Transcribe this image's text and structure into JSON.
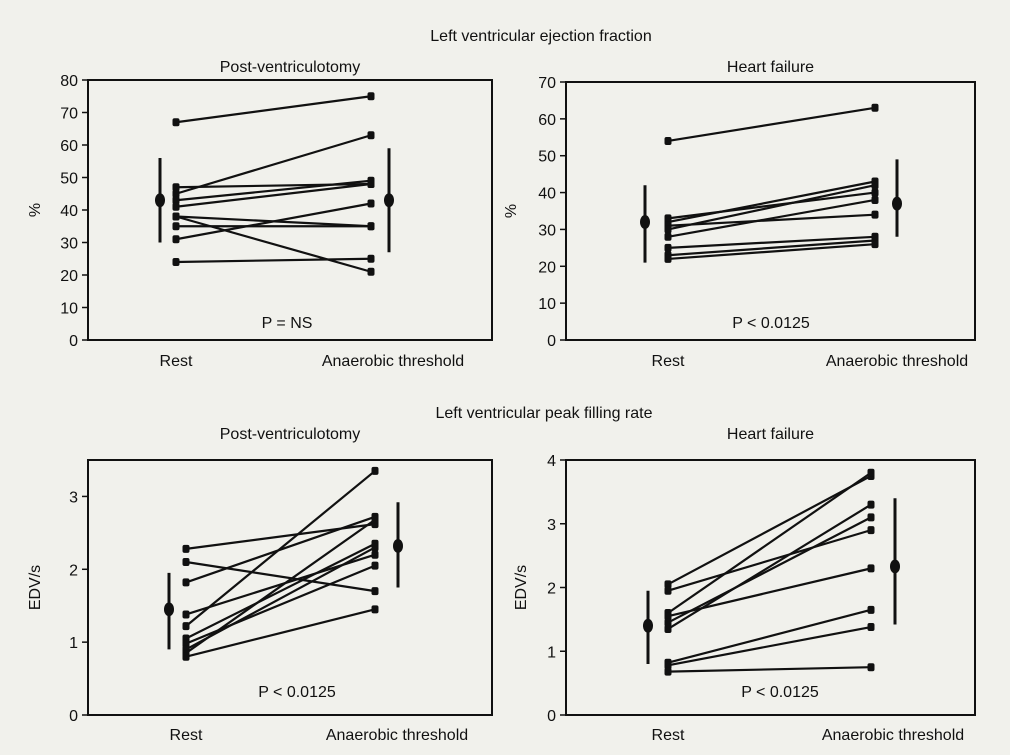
{
  "figure": {
    "background": "#f1f1ec",
    "ink": "#111111",
    "sections": [
      {
        "title": "Left ventricular ejection fraction"
      },
      {
        "title": "Left ventricular peak filling rate"
      }
    ]
  },
  "chart_data": [
    {
      "type": "line",
      "section": 0,
      "title": "Post-ventriculotomy",
      "ylabel": "%",
      "categories": [
        "Rest",
        "Anaerobic threshold"
      ],
      "ylim": [
        0,
        80
      ],
      "yticks": [
        0,
        10,
        20,
        30,
        40,
        50,
        60,
        70,
        80
      ],
      "annotation": "P = NS",
      "pairs": [
        [
          67,
          75
        ],
        [
          47,
          48
        ],
        [
          45,
          63
        ],
        [
          43,
          49
        ],
        [
          41,
          48
        ],
        [
          38,
          21
        ],
        [
          38,
          35
        ],
        [
          35,
          35
        ],
        [
          31,
          42
        ],
        [
          24,
          25
        ]
      ],
      "summary": [
        {
          "mean": 43,
          "low": 30,
          "high": 56
        },
        {
          "mean": 43,
          "low": 27,
          "high": 59
        }
      ]
    },
    {
      "type": "line",
      "section": 0,
      "title": "Heart failure",
      "ylabel": "%",
      "categories": [
        "Rest",
        "Anaerobic threshold"
      ],
      "ylim": [
        0,
        70
      ],
      "yticks": [
        0,
        10,
        20,
        30,
        40,
        50,
        60,
        70
      ],
      "annotation": "P < 0.0125",
      "pairs": [
        [
          54,
          63
        ],
        [
          33,
          40
        ],
        [
          32,
          43
        ],
        [
          31,
          34
        ],
        [
          30,
          42
        ],
        [
          28,
          38
        ],
        [
          25,
          28
        ],
        [
          23,
          27
        ],
        [
          22,
          26
        ]
      ],
      "summary": [
        {
          "mean": 32,
          "low": 21,
          "high": 42
        },
        {
          "mean": 37,
          "low": 28,
          "high": 49
        }
      ]
    },
    {
      "type": "line",
      "section": 1,
      "title": "Post-ventriculotomy",
      "ylabel": "EDV/s",
      "categories": [
        "Rest",
        "Anaerobic threshold"
      ],
      "ylim": [
        0,
        3.5
      ],
      "yticks": [
        0,
        1,
        2,
        3
      ],
      "annotation": "P < 0.0125",
      "pairs": [
        [
          2.28,
          2.62
        ],
        [
          2.1,
          1.7
        ],
        [
          1.82,
          2.72
        ],
        [
          1.38,
          2.2
        ],
        [
          1.22,
          3.35
        ],
        [
          1.05,
          2.35
        ],
        [
          0.98,
          2.05
        ],
        [
          0.9,
          2.3
        ],
        [
          0.85,
          2.68
        ],
        [
          0.8,
          1.45
        ]
      ],
      "summary": [
        {
          "mean": 1.45,
          "low": 0.9,
          "high": 1.95
        },
        {
          "mean": 2.32,
          "low": 1.75,
          "high": 2.92
        }
      ]
    },
    {
      "type": "line",
      "section": 1,
      "title": "Heart failure",
      "ylabel": "EDV/s",
      "categories": [
        "Rest",
        "Anaerobic threshold"
      ],
      "ylim": [
        0,
        4
      ],
      "yticks": [
        0,
        1,
        2,
        3,
        4
      ],
      "annotation": "P < 0.0125",
      "pairs": [
        [
          2.05,
          3.75
        ],
        [
          1.95,
          2.9
        ],
        [
          1.6,
          3.8
        ],
        [
          1.55,
          2.3
        ],
        [
          1.45,
          3.1
        ],
        [
          1.35,
          3.3
        ],
        [
          0.82,
          1.65
        ],
        [
          0.78,
          1.38
        ],
        [
          0.68,
          0.75
        ]
      ],
      "summary": [
        {
          "mean": 1.4,
          "low": 0.8,
          "high": 1.95
        },
        {
          "mean": 2.33,
          "low": 1.42,
          "high": 3.4
        }
      ]
    }
  ]
}
